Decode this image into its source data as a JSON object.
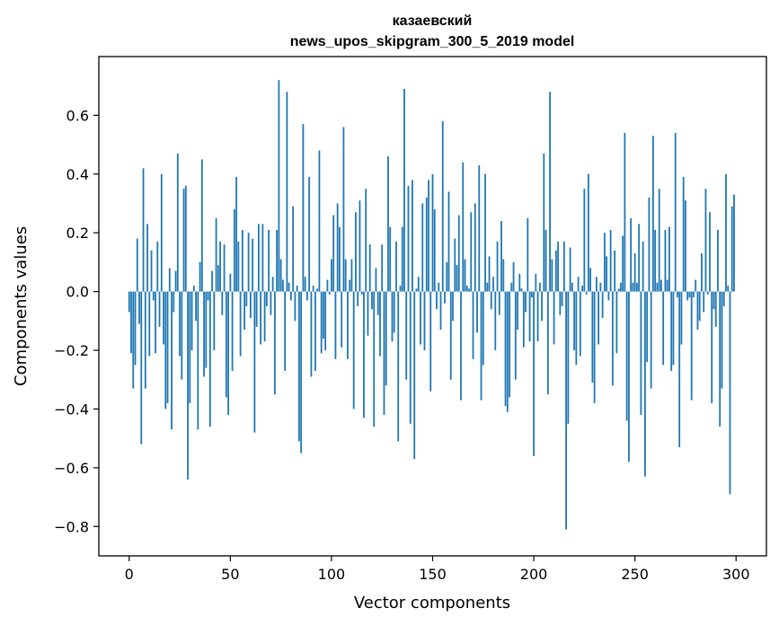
{
  "chart_data": {
    "type": "bar",
    "title_line1": "казаевский",
    "title_line2": "news_upos_skipgram_300_5_2019 model",
    "xlabel": "Vector components",
    "ylabel": "Components values",
    "xlim": [
      -15,
      315
    ],
    "ylim": [
      -0.9,
      0.8
    ],
    "xticks": [
      0,
      50,
      100,
      150,
      200,
      250,
      300
    ],
    "xtick_labels": [
      "0",
      "50",
      "100",
      "150",
      "200",
      "250",
      "300"
    ],
    "yticks": [
      -0.8,
      -0.6,
      -0.4,
      -0.2,
      0.0,
      0.2,
      0.4,
      0.6
    ],
    "ytick_labels": [
      "−0.8",
      "−0.6",
      "−0.4",
      "−0.2",
      "0.0",
      "0.2",
      "0.4",
      "0.6"
    ],
    "bar_color": "#1f77b4",
    "grid": false,
    "values": [
      -0.07,
      -0.21,
      -0.33,
      -0.25,
      0.18,
      -0.11,
      -0.52,
      0.42,
      -0.33,
      0.23,
      -0.22,
      0.14,
      -0.03,
      -0.21,
      0.17,
      -0.12,
      0.4,
      -0.18,
      -0.4,
      -0.38,
      0.08,
      -0.47,
      -0.07,
      0.07,
      0.47,
      -0.22,
      -0.3,
      0.35,
      0.36,
      -0.64,
      -0.38,
      -0.2,
      0.02,
      -0.1,
      -0.47,
      0.1,
      0.45,
      -0.29,
      -0.26,
      -0.03,
      -0.46,
      0.07,
      -0.2,
      0.25,
      0.09,
      0.17,
      -0.08,
      0.16,
      -0.36,
      -0.42,
      0.06,
      -0.27,
      0.28,
      0.39,
      0.17,
      -0.22,
      0.21,
      -0.13,
      -0.05,
      0.2,
      -0.09,
      0.18,
      -0.48,
      -0.12,
      0.23,
      -0.18,
      0.23,
      -0.17,
      -0.05,
      0.21,
      -0.08,
      0.05,
      -0.35,
      0.21,
      0.72,
      0.11,
      0.04,
      -0.27,
      0.68,
      0.03,
      -0.03,
      0.29,
      -0.1,
      0.02,
      -0.51,
      -0.55,
      0.57,
      0.05,
      -0.03,
      0.39,
      -0.29,
      0.02,
      -0.27,
      0.01,
      0.48,
      -0.21,
      -0.16,
      -0.2,
      0.04,
      -0.01,
      0.11,
      0.26,
      -0.23,
      0.3,
      0.22,
      -0.19,
      0.56,
      0.11,
      -0.23,
      0.04,
      0.11,
      -0.4,
      0.27,
      -0.05,
      0.31,
      -0.01,
      -0.43,
      0.35,
      -0.15,
      0.16,
      -0.06,
      -0.46,
      0.08,
      -0.08,
      -0.22,
      0.16,
      -0.42,
      -0.32,
      0.46,
      0.22,
      -0.17,
      -0.14,
      0.17,
      -0.51,
      0.02,
      0.22,
      0.69,
      -0.3,
      0.36,
      -0.45,
      0.38,
      -0.57,
      0.01,
      0.05,
      -0.18,
      0.3,
      -0.2,
      0.32,
      0.38,
      -0.34,
      0.4,
      0.28,
      -0.06,
      0.03,
      -0.13,
      0.58,
      -0.04,
      0.1,
      0.34,
      -0.3,
      -0.1,
      0.18,
      0.09,
      0.26,
      -0.37,
      0.44,
      0.11,
      0.02,
      0.01,
      0.27,
      -0.23,
      0.3,
      -0.14,
      0.43,
      -0.37,
      -0.25,
      0.4,
      0.03,
      0.12,
      -0.06,
      0.05,
      -0.2,
      0.17,
      -0.08,
      0.24,
      0.11,
      -0.39,
      -0.41,
      -0.36,
      0.03,
      0.1,
      -0.3,
      -0.13,
      0.06,
      0.01,
      -0.19,
      -0.07,
      0.25,
      -0.17,
      -0.02,
      -0.56,
      0.06,
      -0.17,
      0.03,
      -0.1,
      0.47,
      0.21,
      -0.35,
      0.68,
      0.11,
      -0.18,
      0.14,
      0.17,
      -0.08,
      -0.05,
      0.17,
      -0.81,
      -0.45,
      0.15,
      0.03,
      -0.2,
      -0.25,
      0.05,
      -0.22,
      0.02,
      0.35,
      -0.01,
      0.4,
      0.08,
      -0.31,
      -0.38,
      0.05,
      -0.18,
      0.03,
      -0.09,
      0.2,
      0.12,
      -0.03,
      0.21,
      -0.32,
      0.14,
      -0.21,
      0.01,
      0.03,
      0.19,
      0.54,
      -0.44,
      -0.58,
      0.25,
      0.03,
      0.13,
      0.03,
      0.23,
      -0.42,
      0.17,
      -0.63,
      -0.24,
      0.32,
      -0.33,
      0.53,
      0.21,
      0.03,
      0.35,
      0.04,
      -0.25,
      0.21,
      0.04,
      0.22,
      -0.27,
      -0.25,
      0.54,
      -0.02,
      -0.53,
      -0.18,
      0.39,
      0.31,
      -0.03,
      -0.02,
      -0.37,
      -0.02,
      0.04,
      -0.13,
      -0.1,
      0.13,
      -0.07,
      0.35,
      -0.01,
      0.27,
      -0.38,
      -0.06,
      -0.12,
      0.21,
      -0.46,
      -0.33,
      -0.05,
      0.4,
      0.02,
      -0.69,
      0.29,
      0.33
    ]
  }
}
